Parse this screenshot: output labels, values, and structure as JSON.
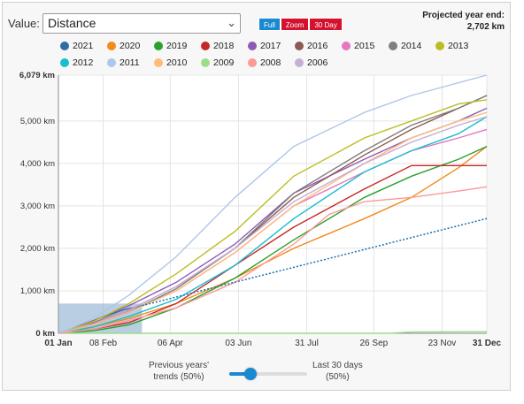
{
  "controls": {
    "value_label": "Value:",
    "value_selected": "Distance",
    "buttons": [
      "Full",
      "Zoom",
      "30 Day"
    ]
  },
  "projection": {
    "label": "Projected year end:",
    "value": "2,702 km"
  },
  "slider": {
    "left_label_line1": "Previous years'",
    "left_label_line2": "trends (50%)",
    "right_label_line1": "Last 30 days",
    "right_label_line2": "(50%)",
    "value_percent": 50
  },
  "chart_data": {
    "type": "line",
    "title": "",
    "xlabel": "",
    "ylabel": "",
    "x_domain": [
      "01 Jan",
      "31 Dec"
    ],
    "x_ticks": [
      "01 Jan",
      "08 Feb",
      "06 Apr",
      "03 Jun",
      "31 Jul",
      "26 Sep",
      "23 Nov",
      "31 Dec"
    ],
    "x_tick_days": [
      0,
      38,
      95,
      153,
      211,
      268,
      326,
      364
    ],
    "y_ticks": [
      "0 km",
      "1,000 km",
      "2,000 km",
      "3,000 km",
      "4,000 km",
      "5,000 km",
      "6,079 km"
    ],
    "y_tick_values": [
      0,
      1000,
      2000,
      3000,
      4000,
      5000,
      6079
    ],
    "ylim": [
      0,
      6079
    ],
    "grid": true,
    "legend_position": "top",
    "highlight_range_days": [
      0,
      71
    ],
    "series": [
      {
        "name": "2021",
        "color": "#2e6da4",
        "x": [
          0,
          20,
          40,
          55,
          71
        ],
        "y": [
          0,
          200,
          400,
          550,
          650
        ]
      },
      {
        "name": "2020",
        "color": "#f28a1c",
        "x": [
          0,
          30,
          60,
          100,
          150,
          200,
          260,
          300,
          340,
          364
        ],
        "y": [
          0,
          150,
          350,
          700,
          1300,
          2000,
          2700,
          3200,
          3900,
          4400
        ]
      },
      {
        "name": "2019",
        "color": "#2ca02c",
        "x": [
          0,
          30,
          60,
          100,
          150,
          200,
          260,
          300,
          340,
          364
        ],
        "y": [
          0,
          60,
          200,
          600,
          1300,
          2200,
          3200,
          3700,
          4100,
          4400
        ]
      },
      {
        "name": "2018",
        "color": "#c62828",
        "x": [
          0,
          30,
          60,
          100,
          150,
          200,
          260,
          300,
          364
        ],
        "y": [
          0,
          100,
          250,
          700,
          1600,
          2500,
          3400,
          3950,
          3950
        ]
      },
      {
        "name": "2017",
        "color": "#8e5ab5",
        "x": [
          0,
          30,
          60,
          100,
          150,
          200,
          260,
          300,
          340,
          364
        ],
        "y": [
          0,
          300,
          650,
          1200,
          2100,
          3300,
          4100,
          4600,
          5000,
          5300
        ]
      },
      {
        "name": "2016",
        "color": "#8b5a50",
        "x": [
          0,
          30,
          60,
          100,
          150,
          200,
          260,
          300,
          340,
          364
        ],
        "y": [
          0,
          250,
          550,
          1100,
          2000,
          3200,
          4200,
          4800,
          5300,
          5600
        ]
      },
      {
        "name": "2015",
        "color": "#e377c2",
        "x": [
          0,
          30,
          60,
          100,
          150,
          200,
          260,
          300,
          340,
          364
        ],
        "y": [
          0,
          220,
          520,
          1000,
          1900,
          3000,
          3800,
          4300,
          4600,
          4800
        ]
      },
      {
        "name": "2014",
        "color": "#7f7f7f",
        "x": [
          0,
          30,
          60,
          100,
          150,
          200,
          260,
          300,
          340,
          364
        ],
        "y": [
          0,
          200,
          500,
          1050,
          2000,
          3300,
          4300,
          4900,
          5300,
          5600
        ]
      },
      {
        "name": "2013",
        "color": "#bcbd22",
        "x": [
          0,
          30,
          60,
          100,
          150,
          200,
          260,
          300,
          340,
          364
        ],
        "y": [
          0,
          280,
          700,
          1400,
          2400,
          3700,
          4600,
          5000,
          5400,
          5500
        ]
      },
      {
        "name": "2012",
        "color": "#17becf",
        "x": [
          0,
          30,
          60,
          100,
          150,
          200,
          260,
          300,
          340,
          364
        ],
        "y": [
          0,
          150,
          400,
          800,
          1600,
          2700,
          3800,
          4300,
          4700,
          5100
        ]
      },
      {
        "name": "2011",
        "color": "#aec7e8",
        "x": [
          0,
          30,
          60,
          100,
          150,
          200,
          260,
          300,
          340,
          364
        ],
        "y": [
          0,
          350,
          900,
          1800,
          3200,
          4400,
          5200,
          5600,
          5900,
          6079
        ]
      },
      {
        "name": "2010",
        "color": "#ffbb78",
        "x": [
          0,
          30,
          60,
          100,
          150,
          200,
          260,
          300,
          340,
          364
        ],
        "y": [
          0,
          200,
          500,
          1000,
          1900,
          3000,
          4000,
          4600,
          5000,
          5200
        ]
      },
      {
        "name": "2009",
        "color": "#98df8a",
        "x": [
          0,
          280,
          300,
          364
        ],
        "y": [
          0,
          0,
          30,
          40
        ]
      },
      {
        "name": "2008",
        "color": "#ff9896",
        "x": [
          0,
          30,
          60,
          100,
          150,
          200,
          230,
          260,
          300,
          340,
          364
        ],
        "y": [
          0,
          100,
          300,
          600,
          1200,
          2100,
          2800,
          3100,
          3200,
          3350,
          3450
        ]
      },
      {
        "name": "2006",
        "color": "#c5b0d5",
        "x": [
          0,
          30,
          60,
          100,
          150,
          200,
          260,
          300,
          340,
          364
        ],
        "y": [
          0,
          230,
          550,
          1100,
          2000,
          3100,
          4000,
          4500,
          4900,
          5100
        ]
      }
    ],
    "projection_line": {
      "color": "#1a6fb0",
      "x": [
        71,
        364
      ],
      "y": [
        650,
        2702
      ]
    }
  }
}
